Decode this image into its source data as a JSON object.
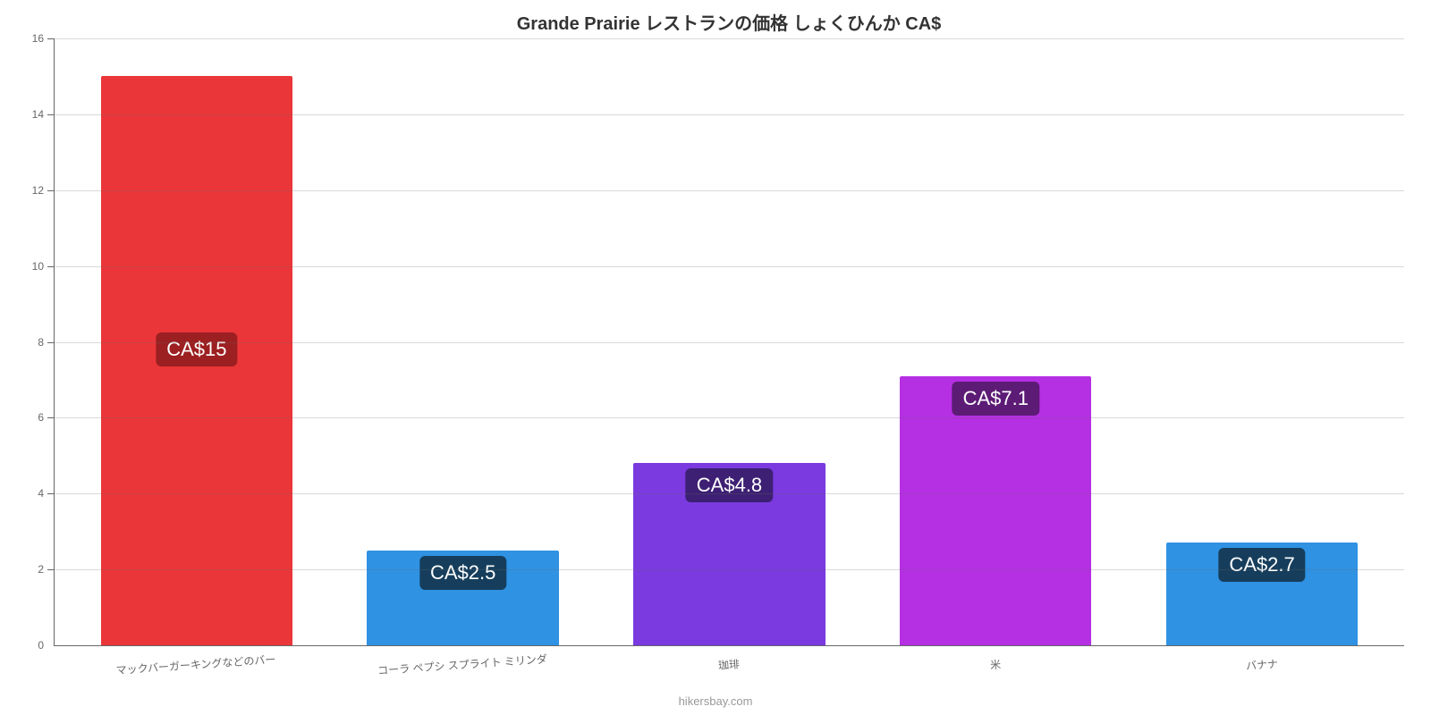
{
  "chart": {
    "type": "bar",
    "title": "Grande Prairie レストランの価格 しょくひんか CA$",
    "title_fontsize": 20,
    "title_color": "#333333",
    "background_color": "#ffffff",
    "grid_color": "#666666",
    "axis_color": "#666666",
    "ylim": [
      0,
      16
    ],
    "ytick_step": 2,
    "yticks": [
      0,
      2,
      4,
      6,
      8,
      10,
      12,
      14,
      16
    ],
    "bar_width_pct": 72,
    "label_fontsize": 12,
    "value_label_fontsize": 22,
    "value_label_text_color": "#ffffff",
    "categories": [
      "マックバーガーキングなどのバー",
      "コーラ ペプシ スプライト ミリンダ",
      "珈琲",
      "米",
      "バナナ"
    ],
    "values": [
      15,
      2.5,
      4.8,
      7.1,
      2.7
    ],
    "value_labels": [
      "CA$15",
      "CA$2.5",
      "CA$4.8",
      "CA$7.1",
      "CA$2.7"
    ],
    "bar_colors": [
      "#eb3639",
      "#2f92e3",
      "#7a3ae0",
      "#b52fe3",
      "#2f92e3"
    ],
    "label_bg_colors": [
      "#9c1f21",
      "#163e5c",
      "#3d2073",
      "#5c1b75",
      "#163e5c"
    ],
    "attribution": "hikersbay.com",
    "attribution_color": "#999999"
  }
}
